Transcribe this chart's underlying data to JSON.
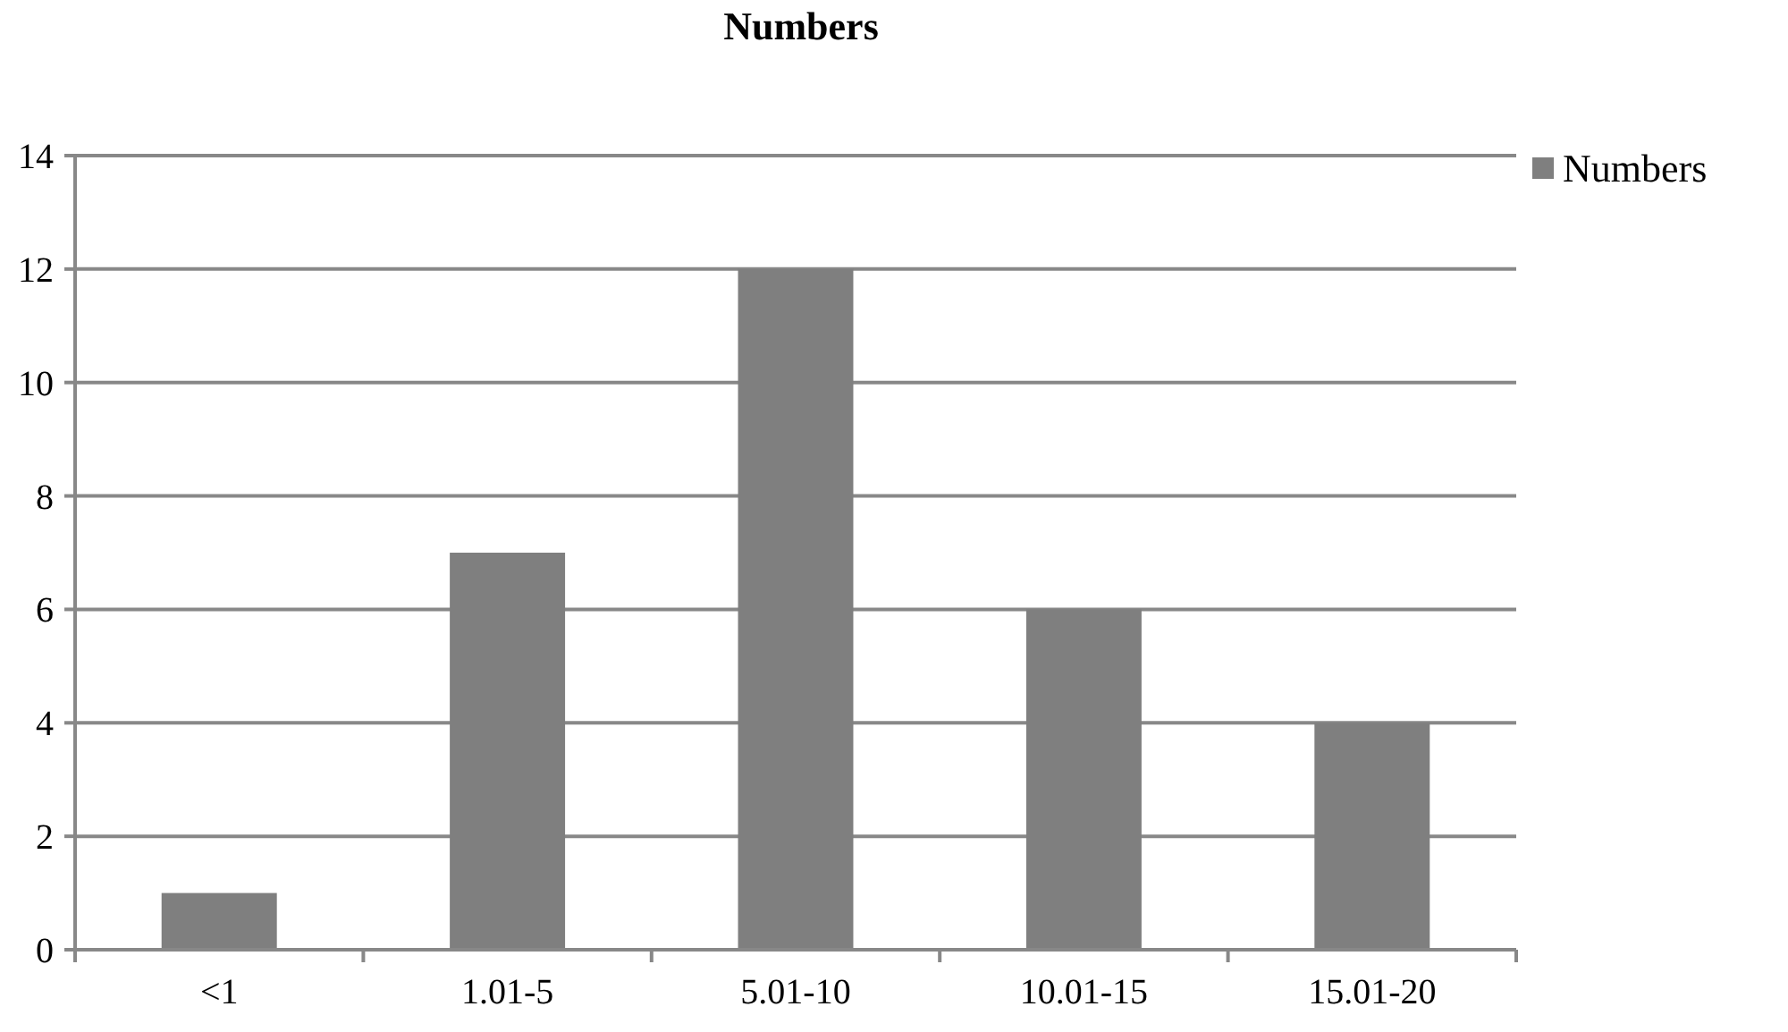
{
  "chart_data": {
    "type": "bar",
    "title": "Numbers",
    "categories": [
      "<1",
      "1.01-5",
      "5.01-10",
      "10.01-15",
      "15.01-20"
    ],
    "series": [
      {
        "name": "Numbers",
        "color": "#7f7f7f",
        "values": [
          1,
          7,
          12,
          6,
          4
        ]
      }
    ],
    "ylim": [
      0,
      14
    ],
    "yticks": [
      0,
      2,
      4,
      6,
      8,
      10,
      12,
      14
    ],
    "grid": "y",
    "legend": "top right"
  }
}
